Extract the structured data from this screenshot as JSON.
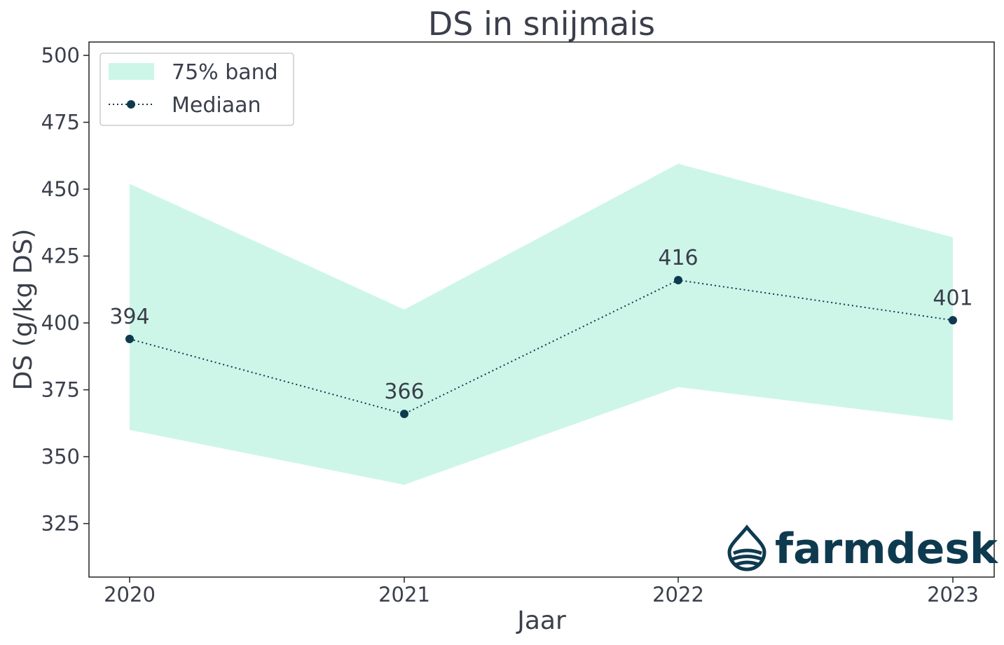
{
  "chart_data": {
    "type": "line",
    "title": "DS in snijmais",
    "xlabel": "Jaar",
    "ylabel": "DS (g/kg DS)",
    "categories": [
      "2020",
      "2021",
      "2022",
      "2023"
    ],
    "ylim": [
      305,
      505
    ],
    "yticks": [
      325,
      350,
      375,
      400,
      425,
      450,
      475,
      500
    ],
    "series": [
      {
        "name": "Mediaan",
        "values": [
          394,
          366,
          416,
          401
        ],
        "style": "dotted-with-markers",
        "color": "#0e3a4f"
      }
    ],
    "band": {
      "name": "75% band",
      "lower": [
        360,
        339.5,
        376,
        363.5
      ],
      "upper": [
        452,
        405,
        459.5,
        432
      ],
      "color": "#cdf6e9"
    },
    "data_labels": [
      "394",
      "366",
      "416",
      "401"
    ],
    "legend": {
      "position": "top-left",
      "entries": [
        "75% band",
        "Mediaan"
      ]
    },
    "grid": false
  },
  "logo": {
    "text": "farmdesk",
    "color": "#0e3a4f",
    "icon": "water-drop-icon"
  },
  "colors": {
    "text": "#3a3f4b",
    "line": "#0e3a4f",
    "band": "#cdf6e9",
    "axis": "#222222"
  }
}
